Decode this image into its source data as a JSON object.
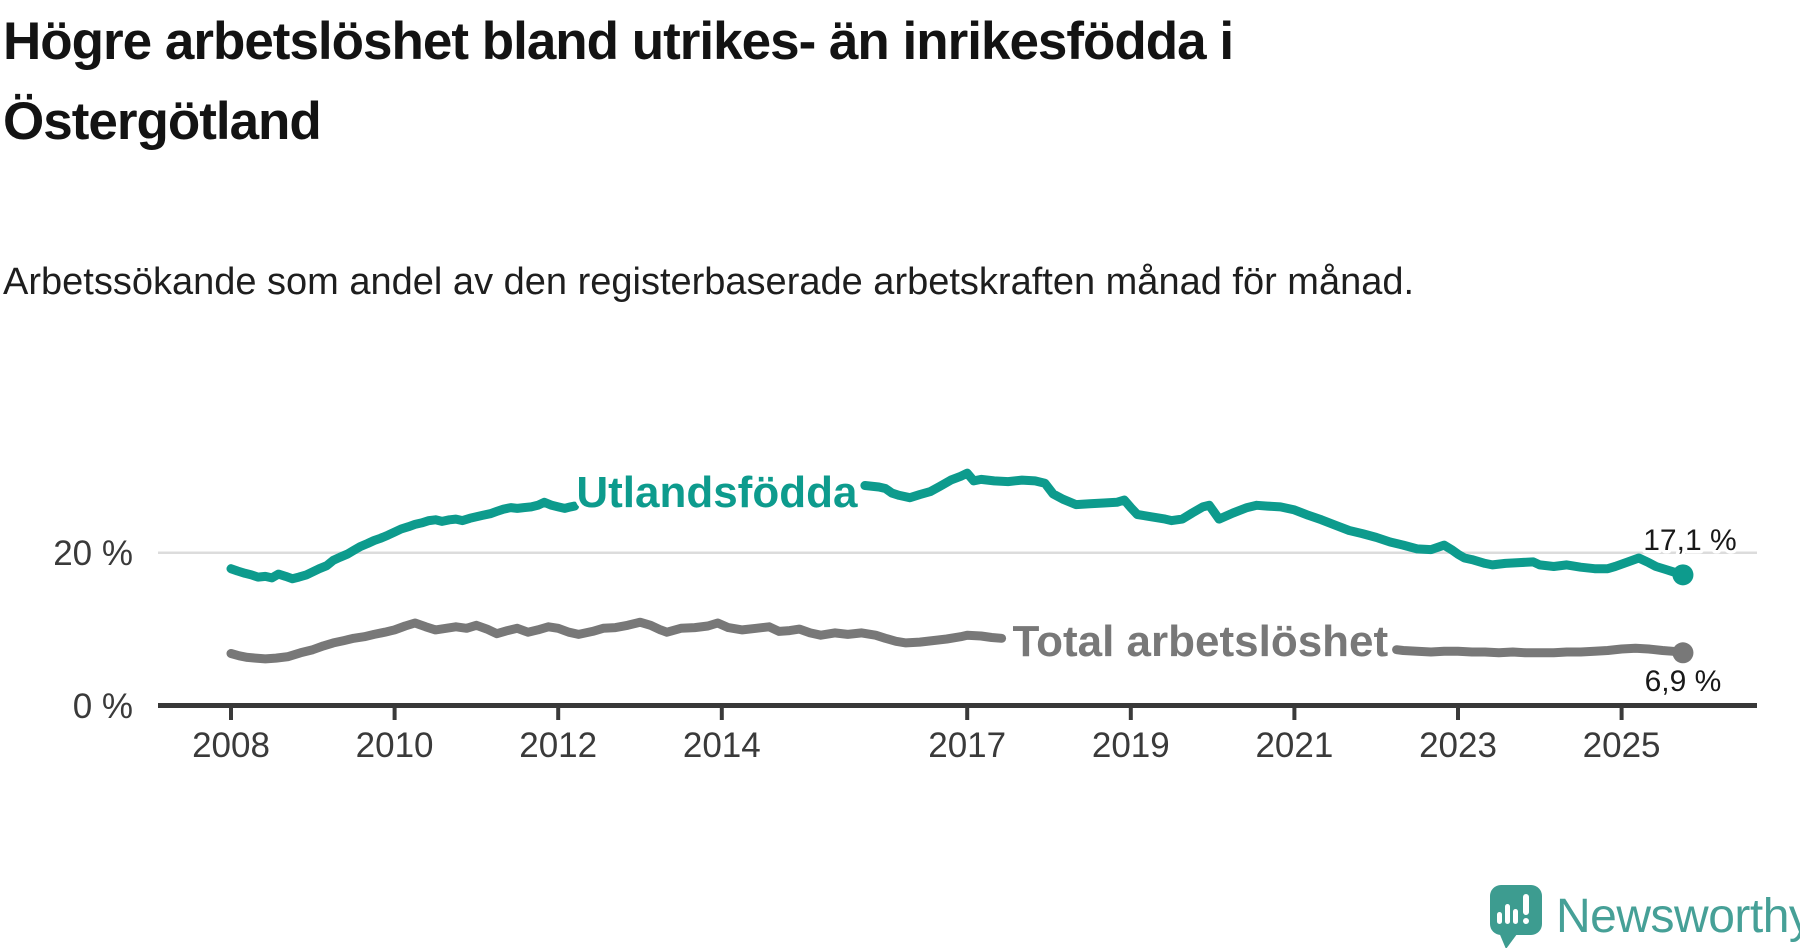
{
  "chart_data": {
    "type": "line",
    "title": "Högre arbetslöshet bland utrikes- än inrikesfödda i Östergötland",
    "subtitle": "Arbetssökande som andel av den registerbaserade arbetskraften månad för månad.",
    "unit": "percent",
    "grid": "single horizontal gridline at 20 %",
    "legend_position": "inline labels on lines",
    "x_axis": {
      "ticks": [
        2008,
        2010,
        2012,
        2014,
        2017,
        2019,
        2021,
        2023,
        2025
      ],
      "range": [
        2008,
        2025.75
      ]
    },
    "y_axis": {
      "tick_values": [
        0,
        20
      ],
      "tick_labels": [
        "0 %",
        "20 %"
      ],
      "range": [
        0,
        34
      ],
      "gridlines": [
        20
      ]
    },
    "series": [
      {
        "name": "Utlandsfödda",
        "color": "#0d9b8d",
        "end_value": 17.1,
        "end_label": "17,1 %",
        "value_label_position": "above",
        "label_anchor": {
          "x": 2013.94,
          "y": 28.1
        },
        "segments": [
          [
            [
              2008.0,
              17.9
            ],
            [
              2008.08,
              17.6
            ],
            [
              2008.17,
              17.3
            ],
            [
              2008.25,
              17.1
            ],
            [
              2008.33,
              16.8
            ],
            [
              2008.42,
              16.9
            ],
            [
              2008.5,
              16.7
            ],
            [
              2008.58,
              17.2
            ],
            [
              2008.67,
              16.9
            ],
            [
              2008.75,
              16.6
            ],
            [
              2008.83,
              16.8
            ],
            [
              2008.92,
              17.1
            ],
            [
              2009.0,
              17.5
            ],
            [
              2009.08,
              17.9
            ],
            [
              2009.17,
              18.3
            ],
            [
              2009.25,
              19.0
            ],
            [
              2009.33,
              19.4
            ],
            [
              2009.42,
              19.8
            ],
            [
              2009.5,
              20.3
            ],
            [
              2009.58,
              20.8
            ],
            [
              2009.67,
              21.2
            ],
            [
              2009.75,
              21.6
            ],
            [
              2009.83,
              21.9
            ],
            [
              2009.92,
              22.3
            ],
            [
              2010.0,
              22.7
            ],
            [
              2010.08,
              23.1
            ],
            [
              2010.17,
              23.4
            ],
            [
              2010.25,
              23.7
            ],
            [
              2010.33,
              23.9
            ],
            [
              2010.42,
              24.2
            ],
            [
              2010.5,
              24.3
            ],
            [
              2010.58,
              24.1
            ],
            [
              2010.67,
              24.3
            ],
            [
              2010.75,
              24.4
            ],
            [
              2010.83,
              24.2
            ],
            [
              2010.92,
              24.5
            ],
            [
              2011.0,
              24.7
            ],
            [
              2011.08,
              24.9
            ],
            [
              2011.17,
              25.1
            ],
            [
              2011.25,
              25.4
            ],
            [
              2011.33,
              25.7
            ],
            [
              2011.42,
              25.9
            ],
            [
              2011.5,
              25.8
            ],
            [
              2011.58,
              25.9
            ],
            [
              2011.67,
              26.0
            ],
            [
              2011.75,
              26.2
            ],
            [
              2011.83,
              26.6
            ],
            [
              2011.92,
              26.2
            ],
            [
              2012.0,
              26.0
            ],
            [
              2012.08,
              25.8
            ],
            [
              2012.15,
              26.0
            ],
            [
              2012.2,
              26.1
            ]
          ],
          [
            [
              2015.75,
              28.8
            ],
            [
              2015.92,
              28.6
            ],
            [
              2016.0,
              28.4
            ],
            [
              2016.08,
              27.8
            ],
            [
              2016.17,
              27.5
            ],
            [
              2016.3,
              27.2
            ],
            [
              2016.42,
              27.6
            ],
            [
              2016.55,
              28.0
            ],
            [
              2016.67,
              28.7
            ],
            [
              2016.8,
              29.5
            ],
            [
              2016.92,
              30.0
            ],
            [
              2017.0,
              30.4
            ],
            [
              2017.08,
              29.4
            ],
            [
              2017.17,
              29.6
            ],
            [
              2017.33,
              29.4
            ],
            [
              2017.5,
              29.3
            ],
            [
              2017.67,
              29.5
            ],
            [
              2017.83,
              29.4
            ],
            [
              2017.95,
              29.1
            ],
            [
              2018.05,
              27.7
            ],
            [
              2018.17,
              27.0
            ],
            [
              2018.33,
              26.3
            ],
            [
              2018.5,
              26.4
            ],
            [
              2018.67,
              26.5
            ],
            [
              2018.83,
              26.6
            ],
            [
              2018.92,
              26.9
            ],
            [
              2019.0,
              25.9
            ],
            [
              2019.08,
              25.0
            ],
            [
              2019.25,
              24.7
            ],
            [
              2019.42,
              24.4
            ],
            [
              2019.5,
              24.2
            ],
            [
              2019.63,
              24.4
            ],
            [
              2019.75,
              25.2
            ],
            [
              2019.88,
              26.0
            ],
            [
              2019.96,
              26.2
            ],
            [
              2020.08,
              24.4
            ],
            [
              2020.25,
              25.2
            ],
            [
              2020.42,
              25.9
            ],
            [
              2020.54,
              26.2
            ],
            [
              2020.67,
              26.1
            ],
            [
              2020.83,
              26.0
            ],
            [
              2021.0,
              25.6
            ],
            [
              2021.17,
              24.9
            ],
            [
              2021.33,
              24.3
            ],
            [
              2021.5,
              23.6
            ],
            [
              2021.67,
              22.9
            ],
            [
              2021.83,
              22.5
            ],
            [
              2022.0,
              22.0
            ],
            [
              2022.17,
              21.4
            ],
            [
              2022.33,
              21.0
            ],
            [
              2022.5,
              20.5
            ],
            [
              2022.67,
              20.4
            ],
            [
              2022.83,
              21.0
            ],
            [
              2022.92,
              20.4
            ],
            [
              2023.0,
              19.8
            ],
            [
              2023.08,
              19.3
            ],
            [
              2023.17,
              19.1
            ],
            [
              2023.33,
              18.6
            ],
            [
              2023.42,
              18.4
            ],
            [
              2023.58,
              18.6
            ],
            [
              2023.75,
              18.7
            ],
            [
              2023.92,
              18.8
            ],
            [
              2024.0,
              18.4
            ],
            [
              2024.17,
              18.2
            ],
            [
              2024.33,
              18.4
            ],
            [
              2024.5,
              18.1
            ],
            [
              2024.67,
              17.9
            ],
            [
              2024.83,
              17.9
            ],
            [
              2024.92,
              18.2
            ],
            [
              2025.08,
              18.8
            ],
            [
              2025.21,
              19.3
            ],
            [
              2025.33,
              18.7
            ],
            [
              2025.42,
              18.2
            ],
            [
              2025.54,
              17.8
            ],
            [
              2025.63,
              17.5
            ],
            [
              2025.75,
              17.1
            ]
          ]
        ]
      },
      {
        "name": "Total arbetslöshet",
        "color": "#787878",
        "end_value": 6.9,
        "end_label": "6,9 %",
        "value_label_position": "below",
        "label_anchor": {
          "x": 2019.85,
          "y": 8.6
        },
        "segments": [
          [
            [
              2008.0,
              6.8
            ],
            [
              2008.1,
              6.5
            ],
            [
              2008.2,
              6.3
            ],
            [
              2008.3,
              6.2
            ],
            [
              2008.42,
              6.1
            ],
            [
              2008.55,
              6.2
            ],
            [
              2008.7,
              6.4
            ],
            [
              2008.85,
              6.9
            ],
            [
              2009.0,
              7.3
            ],
            [
              2009.13,
              7.8
            ],
            [
              2009.25,
              8.2
            ],
            [
              2009.38,
              8.5
            ],
            [
              2009.5,
              8.8
            ],
            [
              2009.63,
              9.0
            ],
            [
              2009.75,
              9.3
            ],
            [
              2009.88,
              9.6
            ],
            [
              2010.0,
              9.9
            ],
            [
              2010.13,
              10.4
            ],
            [
              2010.25,
              10.8
            ],
            [
              2010.38,
              10.3
            ],
            [
              2010.5,
              9.9
            ],
            [
              2010.63,
              10.1
            ],
            [
              2010.75,
              10.3
            ],
            [
              2010.88,
              10.1
            ],
            [
              2011.0,
              10.5
            ],
            [
              2011.13,
              10.0
            ],
            [
              2011.25,
              9.4
            ],
            [
              2011.38,
              9.8
            ],
            [
              2011.5,
              10.1
            ],
            [
              2011.63,
              9.6
            ],
            [
              2011.75,
              9.9
            ],
            [
              2011.88,
              10.3
            ],
            [
              2012.0,
              10.1
            ],
            [
              2012.13,
              9.6
            ],
            [
              2012.25,
              9.3
            ],
            [
              2012.42,
              9.7
            ],
            [
              2012.55,
              10.1
            ],
            [
              2012.7,
              10.2
            ],
            [
              2012.85,
              10.5
            ],
            [
              2013.0,
              10.9
            ],
            [
              2013.13,
              10.5
            ],
            [
              2013.25,
              9.9
            ],
            [
              2013.33,
              9.6
            ],
            [
              2013.5,
              10.1
            ],
            [
              2013.67,
              10.2
            ],
            [
              2013.83,
              10.4
            ],
            [
              2013.95,
              10.8
            ],
            [
              2014.08,
              10.2
            ],
            [
              2014.25,
              9.9
            ],
            [
              2014.42,
              10.1
            ],
            [
              2014.58,
              10.3
            ],
            [
              2014.7,
              9.7
            ],
            [
              2014.83,
              9.8
            ],
            [
              2014.95,
              10.0
            ],
            [
              2015.08,
              9.5
            ],
            [
              2015.21,
              9.2
            ],
            [
              2015.38,
              9.5
            ],
            [
              2015.54,
              9.3
            ],
            [
              2015.71,
              9.5
            ],
            [
              2015.88,
              9.2
            ],
            [
              2016.0,
              8.8
            ],
            [
              2016.13,
              8.4
            ],
            [
              2016.25,
              8.2
            ],
            [
              2016.42,
              8.3
            ],
            [
              2016.58,
              8.5
            ],
            [
              2016.75,
              8.7
            ],
            [
              2016.92,
              9.0
            ],
            [
              2017.0,
              9.2
            ],
            [
              2017.17,
              9.1
            ],
            [
              2017.3,
              8.9
            ],
            [
              2017.42,
              8.8
            ]
          ],
          [
            [
              2022.25,
              7.3
            ],
            [
              2022.33,
              7.2
            ],
            [
              2022.5,
              7.1
            ],
            [
              2022.67,
              7.0
            ],
            [
              2022.83,
              7.1
            ],
            [
              2023.0,
              7.1
            ],
            [
              2023.17,
              7.0
            ],
            [
              2023.33,
              7.0
            ],
            [
              2023.5,
              6.9
            ],
            [
              2023.67,
              7.0
            ],
            [
              2023.83,
              6.9
            ],
            [
              2024.0,
              6.9
            ],
            [
              2024.17,
              6.9
            ],
            [
              2024.33,
              7.0
            ],
            [
              2024.5,
              7.0
            ],
            [
              2024.67,
              7.1
            ],
            [
              2024.83,
              7.2
            ],
            [
              2025.0,
              7.4
            ],
            [
              2025.17,
              7.5
            ],
            [
              2025.33,
              7.4
            ],
            [
              2025.5,
              7.2
            ],
            [
              2025.63,
              7.1
            ],
            [
              2025.75,
              6.9
            ]
          ]
        ]
      }
    ]
  },
  "footer": {
    "logo_text": "Newsworthy",
    "logo_color": "#46a097",
    "logo_icon_color": "#3d9c90"
  }
}
